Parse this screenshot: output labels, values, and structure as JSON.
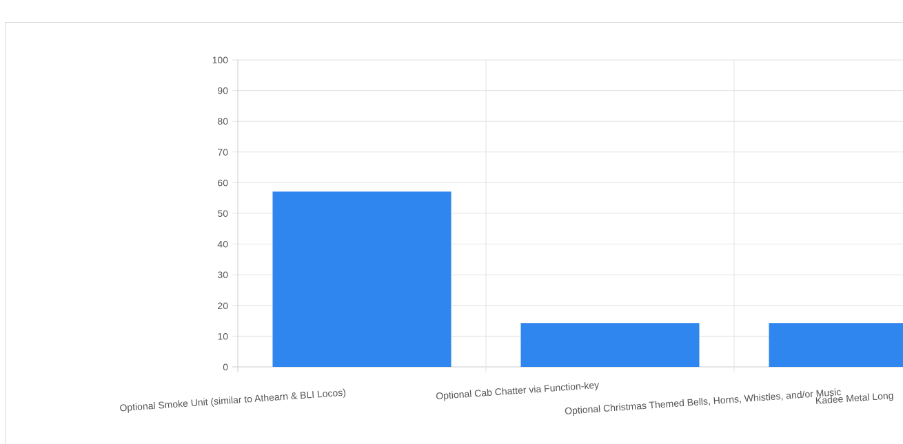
{
  "chart_data": {
    "type": "bar",
    "title": "",
    "xlabel": "",
    "ylabel": "",
    "ylim": [
      0,
      100
    ],
    "yticks": [
      0,
      10,
      20,
      30,
      40,
      50,
      60,
      70,
      80,
      90,
      100
    ],
    "categories": [
      "Optional Smoke Unit (similar to Athearn & BLI Locos)",
      "Optional Cab Chatter via Function-key",
      "Optional Christmas Themed Bells, Horns, Whistles, and/or Music",
      "Kadee Metal Long"
    ],
    "values": [
      57.1,
      14.3,
      14.3,
      14.3
    ],
    "grid": true,
    "legend": "none",
    "colors": {
      "bar": "#2e86ee",
      "grid": "#e3e3e3",
      "axis": "#cccccc",
      "text": "#555555"
    }
  }
}
